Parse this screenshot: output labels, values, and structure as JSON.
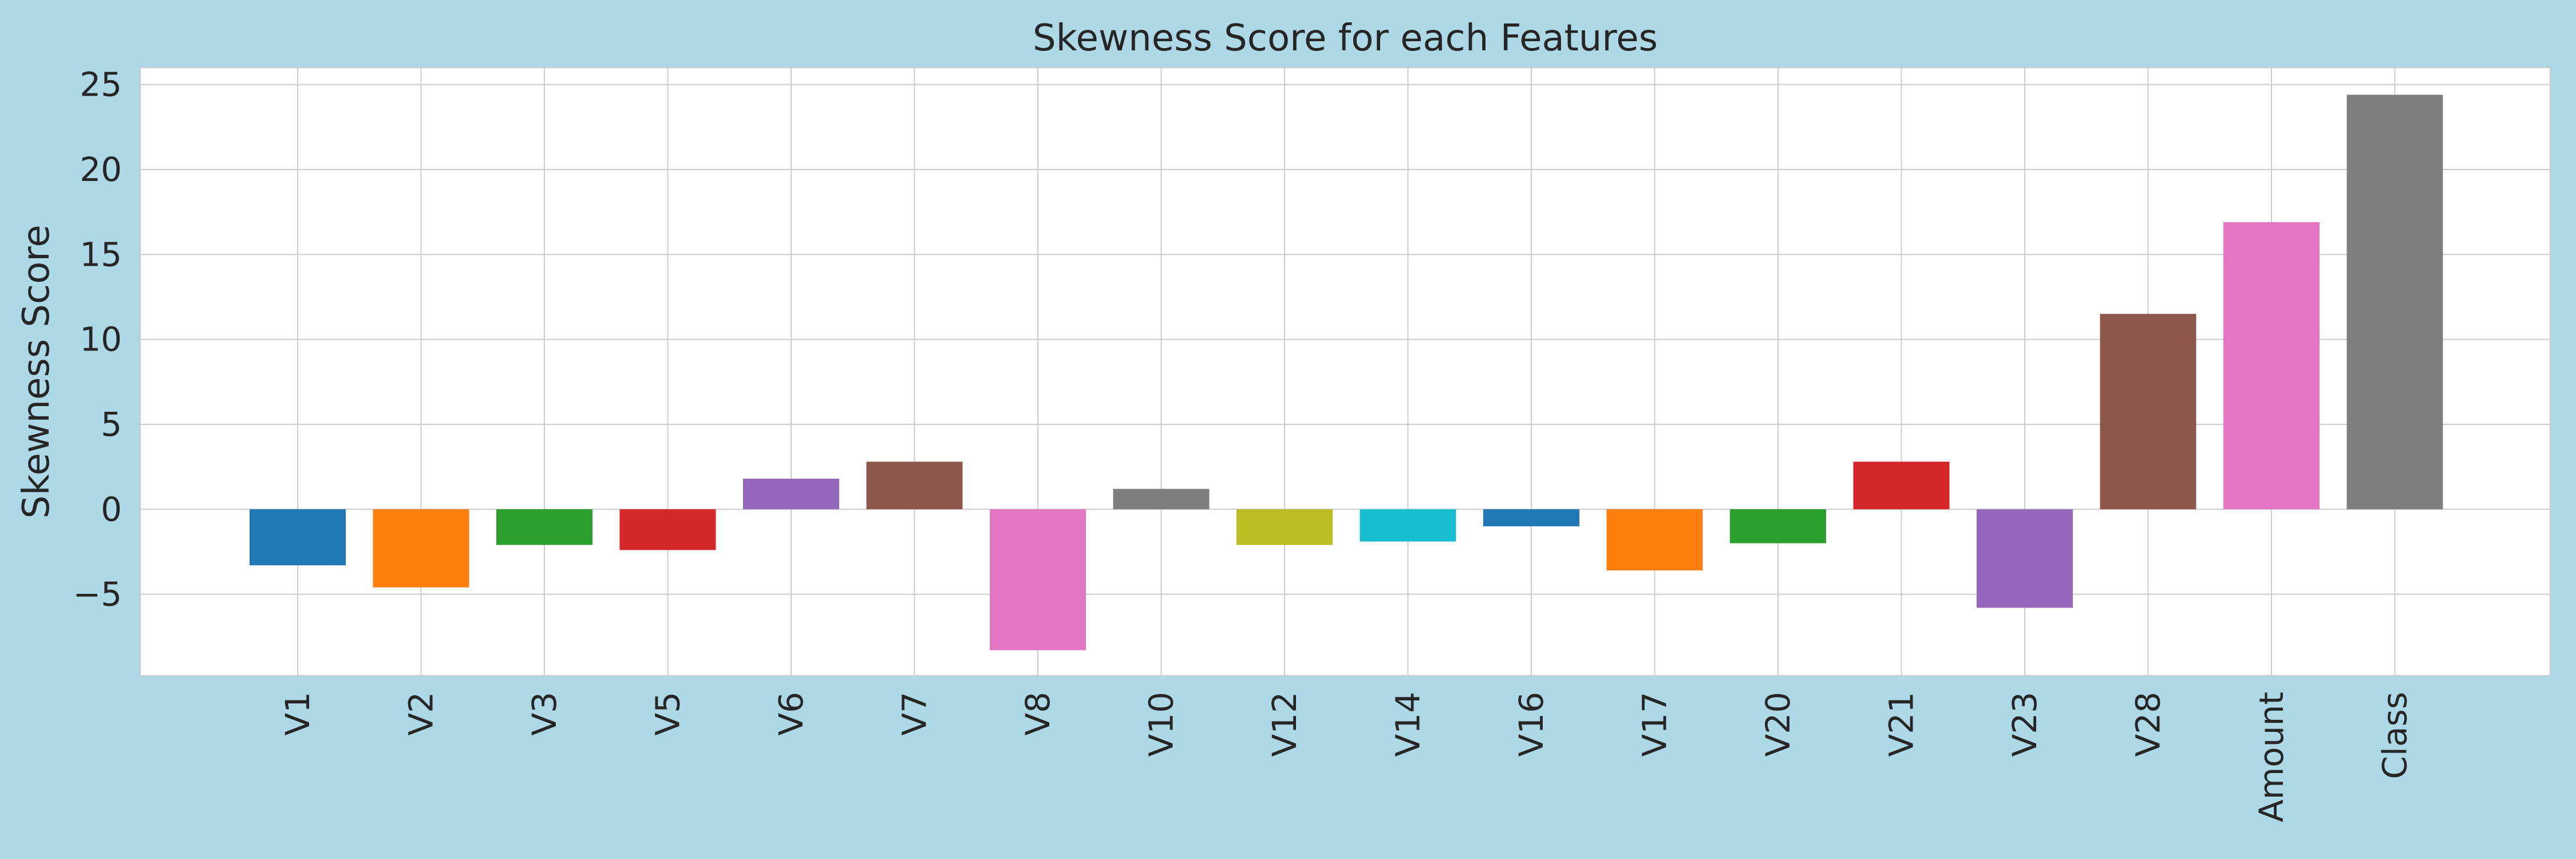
{
  "chart_data": {
    "type": "bar",
    "title": "Skewness Score for each Features",
    "xlabel": "",
    "ylabel": "Skewness Score",
    "categories": [
      "V1",
      "V2",
      "V3",
      "V5",
      "V6",
      "V7",
      "V8",
      "V10",
      "V12",
      "V14",
      "V16",
      "V17",
      "V20",
      "V21",
      "V23",
      "V28",
      "Amount",
      "Class"
    ],
    "values": [
      -3.3,
      -4.6,
      -2.1,
      -2.4,
      1.8,
      2.8,
      -8.3,
      1.2,
      -2.1,
      -1.9,
      -1.0,
      -3.6,
      -2.0,
      2.8,
      -5.8,
      11.5,
      16.9,
      24.4
    ],
    "colors": [
      "#1f77b4",
      "#ff7f0e",
      "#2ca02c",
      "#d62728",
      "#9467bd",
      "#8c564b",
      "#e377c2",
      "#7f7f7f",
      "#bcbd22",
      "#17becf",
      "#1f77b4",
      "#ff7f0e",
      "#2ca02c",
      "#d62728",
      "#9467bd",
      "#8c564b",
      "#e377c2",
      "#7f7f7f"
    ],
    "ylim": [
      -9.8,
      26.0
    ],
    "yticks": [
      -5,
      0,
      5,
      10,
      15,
      20,
      25
    ],
    "ytick_labels": [
      "−5",
      "0",
      "5",
      "10",
      "15",
      "20",
      "25"
    ],
    "grid": true,
    "background": "#add8e6",
    "plot_background": "#ffffff",
    "grid_color": "#cccccc"
  }
}
